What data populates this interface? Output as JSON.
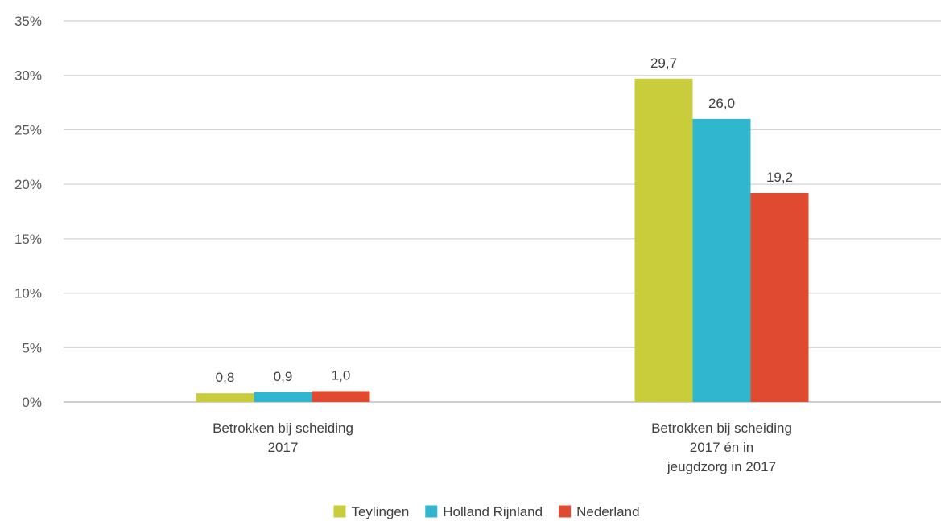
{
  "chart_data": {
    "type": "bar",
    "categories": [
      [
        "Betrokken bij scheiding",
        "2017"
      ],
      [
        "Betrokken bij scheiding",
        "2017 én in",
        "jeugdzorg in 2017"
      ]
    ],
    "series": [
      {
        "name": "Teylingen",
        "color": "#c9cd3c",
        "values": [
          0.8,
          29.7
        ],
        "labels": [
          "0,8",
          "29,7"
        ]
      },
      {
        "name": "Holland Rijnland",
        "color": "#31b6cf",
        "values": [
          0.9,
          26.0
        ],
        "labels": [
          "0,9",
          "26,0"
        ]
      },
      {
        "name": "Nederland",
        "color": "#df4a31",
        "values": [
          1.0,
          19.2
        ],
        "labels": [
          "1,0",
          "19,2"
        ]
      }
    ],
    "y_ticks": [
      "0%",
      "5%",
      "10%",
      "15%",
      "20%",
      "25%",
      "30%",
      "35%"
    ],
    "ylim": [
      0,
      35
    ],
    "grid": true,
    "legend_position": "bottom",
    "title": "",
    "xlabel": "",
    "ylabel": ""
  }
}
